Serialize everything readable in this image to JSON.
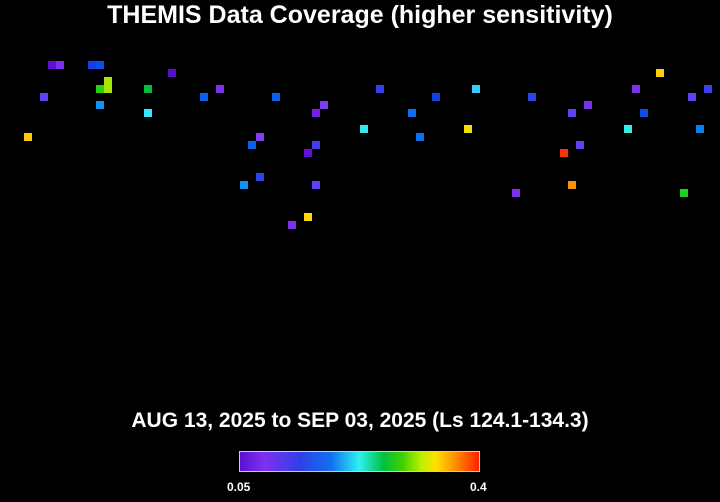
{
  "chart_data": {
    "type": "heatmap",
    "title": "THEMIS Data Coverage (higher sensitivity)",
    "subtitle": "AUG 13, 2025 to SEP 03, 2025 (Ls 124.1-134.3)",
    "colorbar": {
      "min_label": "0.05",
      "max_label": "0.4",
      "range": [
        0.05,
        0.4
      ]
    },
    "cells": [
      {
        "col": 6,
        "row": 0,
        "color": "#5a10d8"
      },
      {
        "col": 7,
        "row": 0,
        "color": "#7a2ef0"
      },
      {
        "col": 11,
        "row": 0,
        "color": "#1a3ae8"
      },
      {
        "col": 12,
        "row": 0,
        "color": "#0a50f0"
      },
      {
        "col": 21,
        "row": 1,
        "color": "#5010d0"
      },
      {
        "col": 13,
        "row": 2,
        "color": "#a8e800"
      },
      {
        "col": 13,
        "row": 3,
        "color": "#a8e800"
      },
      {
        "col": 12,
        "row": 3,
        "color": "#30d010"
      },
      {
        "col": 18,
        "row": 3,
        "color": "#00c040"
      },
      {
        "col": 27,
        "row": 3,
        "color": "#8030f0"
      },
      {
        "col": 5,
        "row": 4,
        "color": "#6040f8"
      },
      {
        "col": 25,
        "row": 4,
        "color": "#0a60f0"
      },
      {
        "col": 34,
        "row": 4,
        "color": "#0a60f0"
      },
      {
        "col": 40,
        "row": 5,
        "color": "#7a40f8"
      },
      {
        "col": 39,
        "row": 6,
        "color": "#7020e8"
      },
      {
        "col": 12,
        "row": 5,
        "color": "#1890f0"
      },
      {
        "col": 18,
        "row": 6,
        "color": "#30e8ff"
      },
      {
        "col": 3,
        "row": 9,
        "color": "#ffc800"
      },
      {
        "col": 32,
        "row": 9,
        "color": "#8040f8"
      },
      {
        "col": 31,
        "row": 10,
        "color": "#0a60f0"
      },
      {
        "col": 39,
        "row": 10,
        "color": "#4040f0"
      },
      {
        "col": 38,
        "row": 11,
        "color": "#6010d8"
      },
      {
        "col": 32,
        "row": 14,
        "color": "#3040e8"
      },
      {
        "col": 30,
        "row": 15,
        "color": "#1890f0"
      },
      {
        "col": 39,
        "row": 15,
        "color": "#6040f8"
      },
      {
        "col": 38,
        "row": 19,
        "color": "#ffd800"
      },
      {
        "col": 36,
        "row": 20,
        "color": "#7a30f0"
      },
      {
        "col": 47,
        "row": 3,
        "color": "#3040e8"
      },
      {
        "col": 54,
        "row": 4,
        "color": "#1040e0"
      },
      {
        "col": 59,
        "row": 3,
        "color": "#30d0ff"
      },
      {
        "col": 51,
        "row": 6,
        "color": "#0a70f0"
      },
      {
        "col": 45,
        "row": 8,
        "color": "#30e8f0"
      },
      {
        "col": 58,
        "row": 8,
        "color": "#f0e000"
      },
      {
        "col": 52,
        "row": 9,
        "color": "#0a70f0"
      },
      {
        "col": 66,
        "row": 4,
        "color": "#3040e8"
      },
      {
        "col": 73,
        "row": 5,
        "color": "#7a30e8"
      },
      {
        "col": 71,
        "row": 6,
        "color": "#6040f8"
      },
      {
        "col": 72,
        "row": 10,
        "color": "#6040f8"
      },
      {
        "col": 70,
        "row": 11,
        "color": "#ff3010"
      },
      {
        "col": 71,
        "row": 15,
        "color": "#ff9000"
      },
      {
        "col": 64,
        "row": 16,
        "color": "#7a30f0"
      },
      {
        "col": 82,
        "row": 1,
        "color": "#ffd000"
      },
      {
        "col": 79,
        "row": 3,
        "color": "#8030f0"
      },
      {
        "col": 88,
        "row": 3,
        "color": "#4040f0"
      },
      {
        "col": 86,
        "row": 4,
        "color": "#6040f8"
      },
      {
        "col": 80,
        "row": 6,
        "color": "#0a50e8"
      },
      {
        "col": 78,
        "row": 8,
        "color": "#30f0e0"
      },
      {
        "col": 87,
        "row": 8,
        "color": "#0a80f0"
      },
      {
        "col": 85,
        "row": 16,
        "color": "#20d020"
      }
    ]
  }
}
